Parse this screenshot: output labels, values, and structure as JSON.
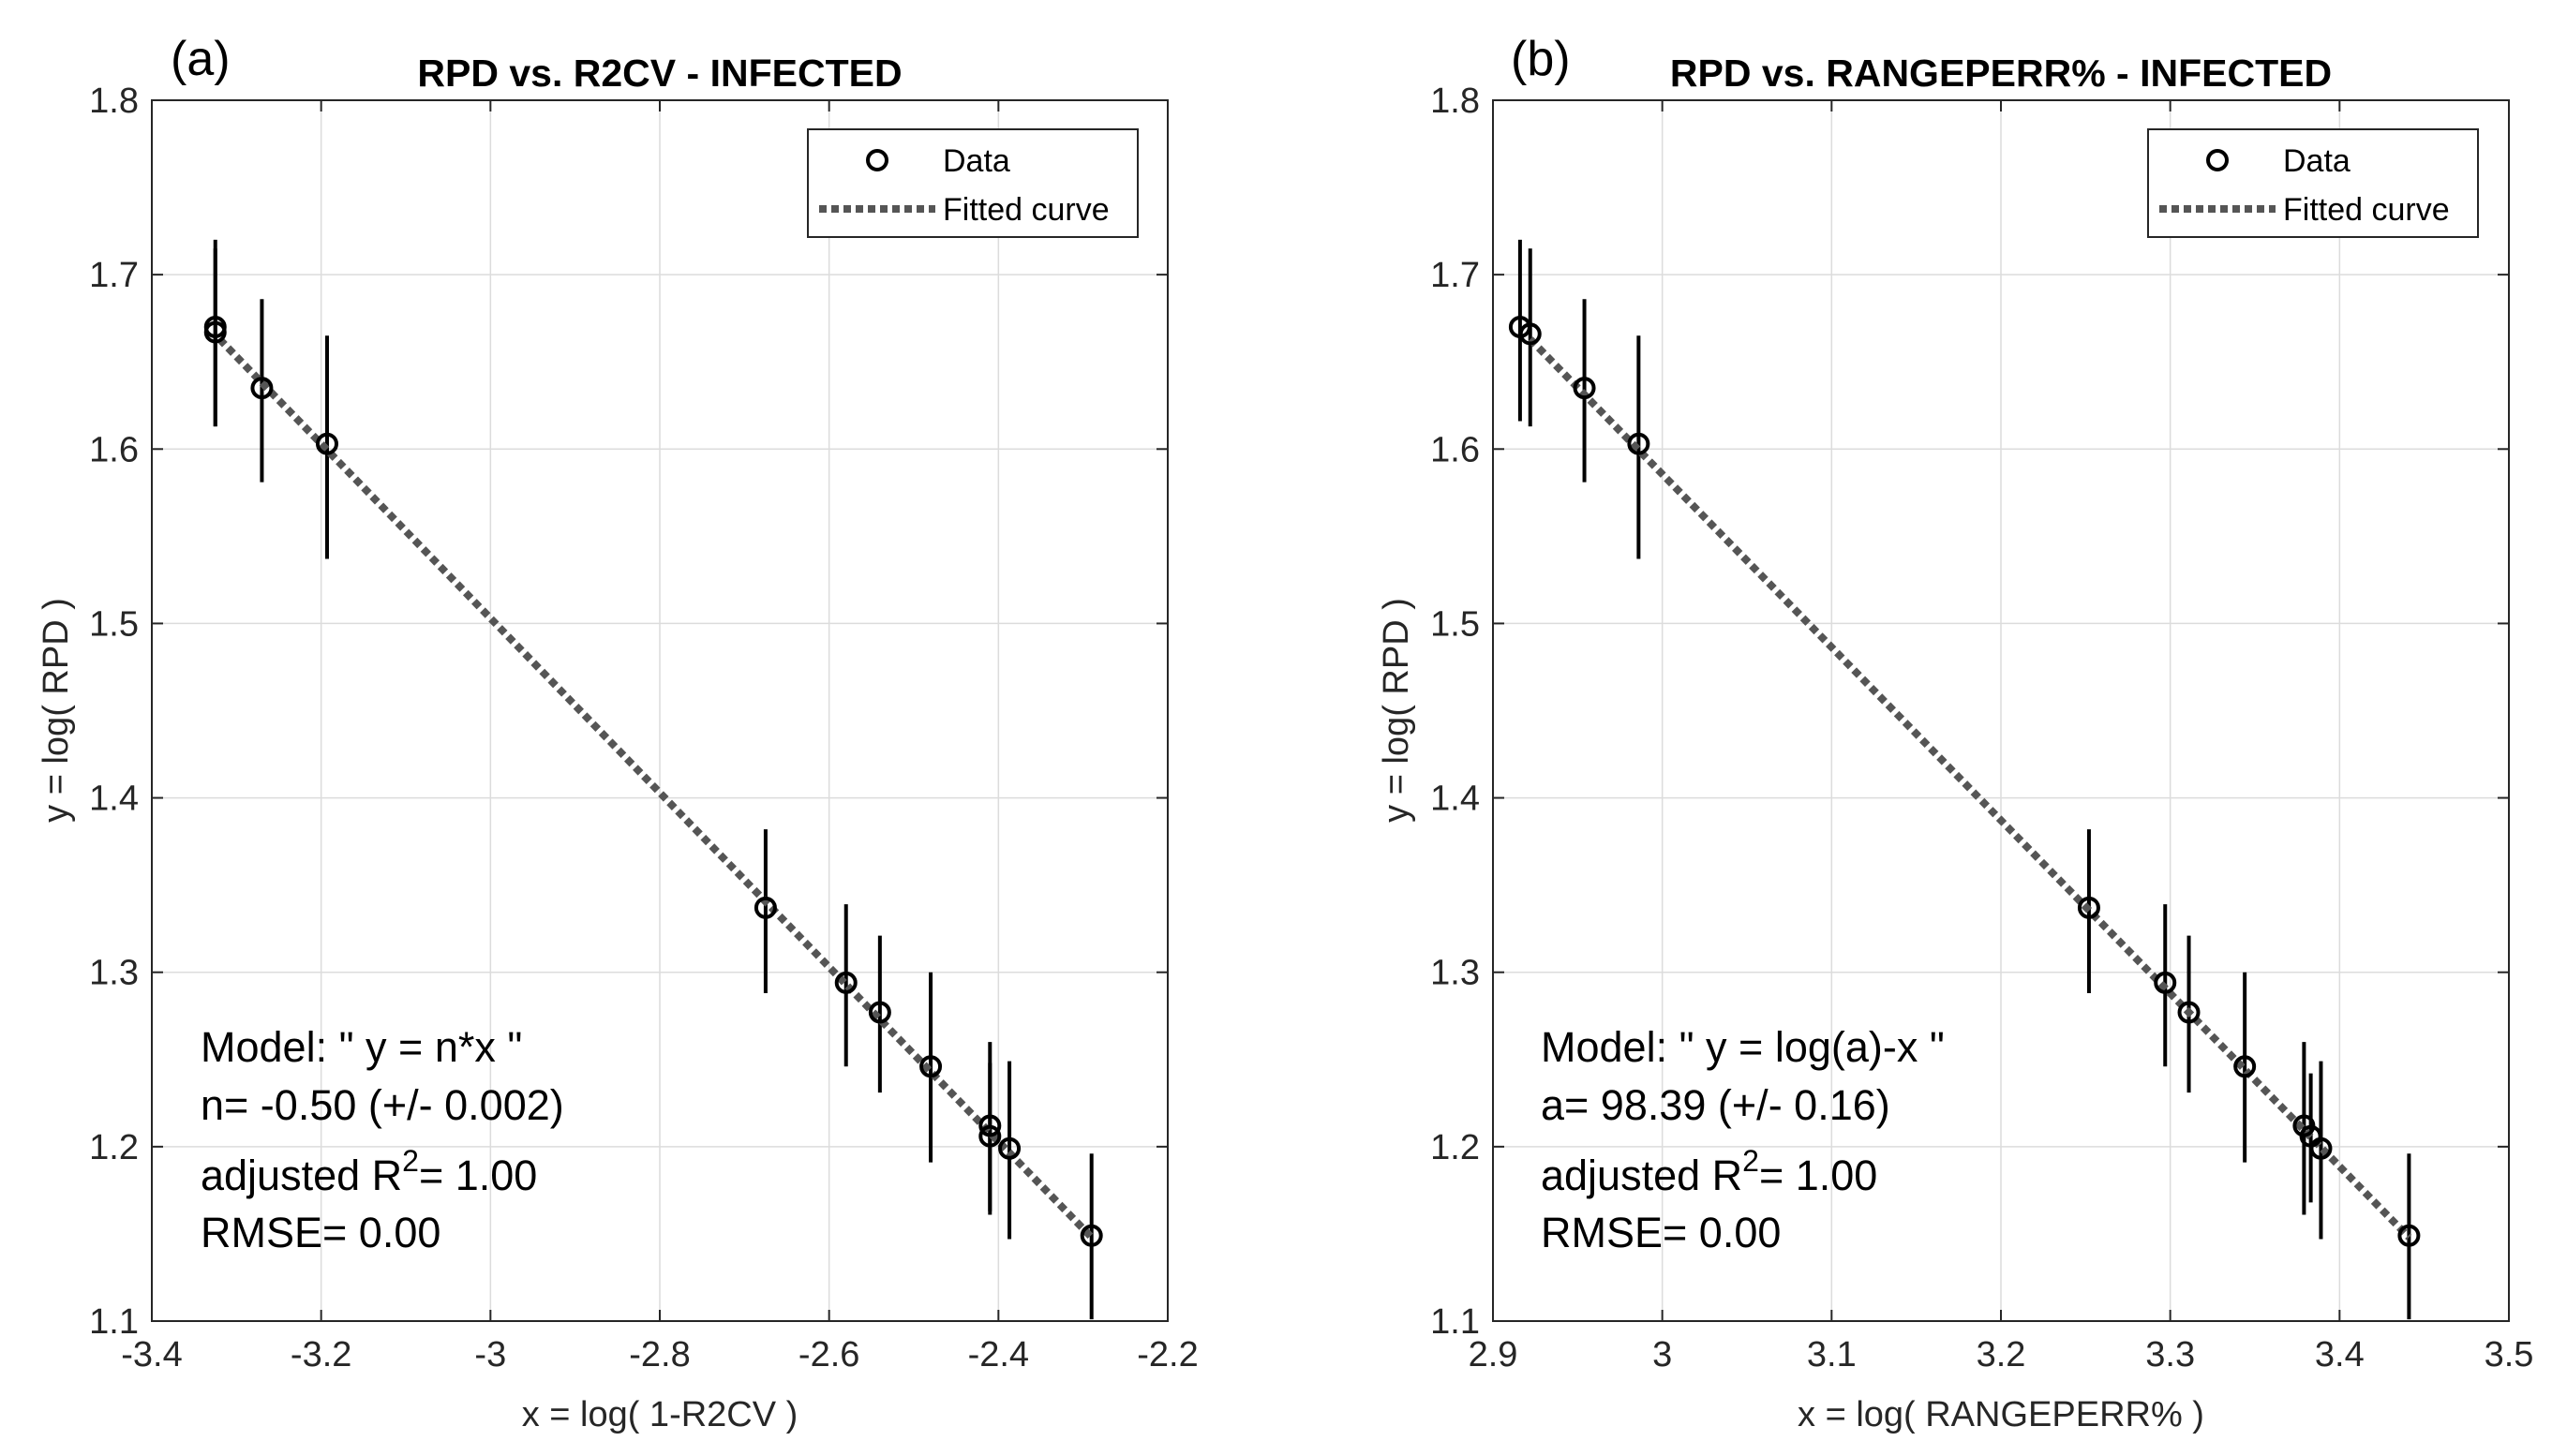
{
  "chart_data": [
    {
      "type": "scatter",
      "panel_label": "(a)",
      "title": "RPD vs. R2CV - INFECTED",
      "xlabel": "x = log( 1-R2CV )",
      "ylabel": "y = log( RPD )",
      "xlim": [
        -3.4,
        -2.2
      ],
      "ylim": [
        1.1,
        1.8
      ],
      "xticks": [
        -3.4,
        -3.2,
        -3.0,
        -2.8,
        -2.6,
        -2.4,
        -2.2
      ],
      "xtick_labels": [
        "-3.4",
        "-3.2",
        "-3",
        "-2.8",
        "-2.6",
        "-2.4",
        "-2.2"
      ],
      "yticks": [
        1.1,
        1.2,
        1.3,
        1.4,
        1.5,
        1.6,
        1.7,
        1.8
      ],
      "ytick_labels": [
        "1.1",
        "1.2",
        "1.3",
        "1.4",
        "1.5",
        "1.6",
        "1.7",
        "1.8"
      ],
      "grid": true,
      "legend": {
        "position": "top-right",
        "entries": [
          "Data",
          "Fitted curve"
        ]
      },
      "series": [
        {
          "name": "Data",
          "x": [
            -3.325,
            -3.325,
            -3.27,
            -3.193,
            -2.675,
            -2.58,
            -2.54,
            -2.48,
            -2.41,
            -2.41,
            -2.387,
            -2.29
          ],
          "y": [
            1.67,
            1.667,
            1.635,
            1.603,
            1.337,
            1.294,
            1.277,
            1.246,
            1.212,
            1.206,
            1.199,
            1.149
          ],
          "err_low": [
            1.613,
            1.613,
            1.581,
            1.537,
            1.288,
            1.246,
            1.231,
            1.191,
            1.161,
            1.163,
            1.147,
            1.101
          ],
          "err_high": [
            1.72,
            1.715,
            1.686,
            1.665,
            1.382,
            1.339,
            1.321,
            1.3,
            1.26,
            1.248,
            1.249,
            1.196
          ]
        },
        {
          "name": "Fitted curve",
          "x": [
            -3.32,
            -2.29
          ],
          "y": [
            1.663,
            1.148
          ]
        }
      ],
      "annotations": {
        "model": "Model: \" y = n*x \"",
        "param": "n= -0.50 (+/- 0.002)",
        "r2_prefix": "adjusted R",
        "r2_sup": "2",
        "r2_value": "= 1.00",
        "rmse": "RMSE= 0.00"
      }
    },
    {
      "type": "scatter",
      "panel_label": "(b)",
      "title": "RPD vs. RANGEPERR% - INFECTED",
      "xlabel": "x = log( RANGEPERR% )",
      "ylabel": "y = log( RPD )",
      "xlim": [
        2.9,
        3.5
      ],
      "ylim": [
        1.1,
        1.8
      ],
      "xticks": [
        2.9,
        3.0,
        3.1,
        3.2,
        3.3,
        3.4,
        3.5
      ],
      "xtick_labels": [
        "2.9",
        "3",
        "3.1",
        "3.2",
        "3.3",
        "3.4",
        "3.5"
      ],
      "yticks": [
        1.1,
        1.2,
        1.3,
        1.4,
        1.5,
        1.6,
        1.7,
        1.8
      ],
      "ytick_labels": [
        "1.1",
        "1.2",
        "1.3",
        "1.4",
        "1.5",
        "1.6",
        "1.7",
        "1.8"
      ],
      "grid": true,
      "legend": {
        "position": "top-right",
        "entries": [
          "Data",
          "Fitted curve"
        ]
      },
      "series": [
        {
          "name": "Data",
          "x": [
            2.916,
            2.922,
            2.954,
            2.986,
            3.252,
            3.297,
            3.311,
            3.344,
            3.379,
            3.383,
            3.389,
            3.441
          ],
          "y": [
            1.67,
            1.666,
            1.635,
            1.603,
            1.337,
            1.294,
            1.277,
            1.246,
            1.212,
            1.206,
            1.199,
            1.149
          ],
          "err_low": [
            1.616,
            1.613,
            1.581,
            1.537,
            1.288,
            1.246,
            1.231,
            1.191,
            1.161,
            1.168,
            1.147,
            1.101
          ],
          "err_high": [
            1.72,
            1.715,
            1.686,
            1.665,
            1.382,
            1.339,
            1.321,
            1.3,
            1.26,
            1.242,
            1.249,
            1.196
          ]
        },
        {
          "name": "Fitted curve",
          "x": [
            2.922,
            3.441
          ],
          "y": [
            1.663,
            1.148
          ]
        }
      ],
      "annotations": {
        "model": "Model: \" y = log(a)-x \"",
        "param": "a= 98.39 (+/- 0.16)",
        "r2_prefix": "adjusted R",
        "r2_sup": "2",
        "r2_value": "= 1.00",
        "rmse": "RMSE= 0.00"
      }
    }
  ]
}
